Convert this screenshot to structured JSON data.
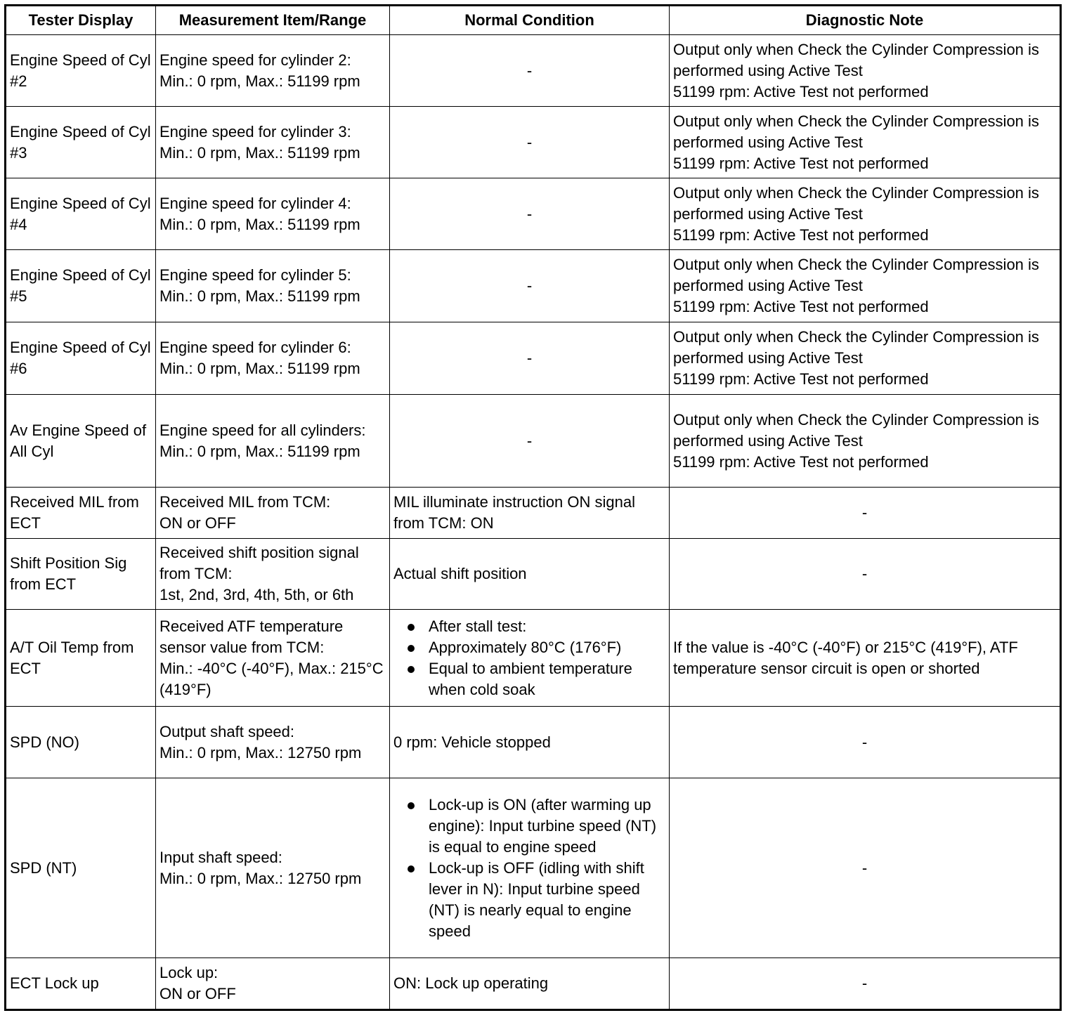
{
  "headers": [
    "Tester Display",
    "Measurement Item/Range",
    "Normal Condition",
    "Diagnostic Note"
  ],
  "rows": [
    {
      "tester": "Engine Speed of Cyl #2",
      "measurement": "Engine speed for cylinder 2:\nMin.: 0 rpm, Max.: 51199 rpm",
      "normal": "-",
      "note": "Output only when Check the Cylinder Compression is performed using Active Test\n51199 rpm: Active Test not performed"
    },
    {
      "tester": "Engine Speed of Cyl #3",
      "measurement": "Engine speed for cylinder 3:\nMin.: 0 rpm, Max.: 51199 rpm",
      "normal": "-",
      "note": "Output only when Check the Cylinder Compression is performed using Active Test\n51199 rpm: Active Test not performed"
    },
    {
      "tester": "Engine Speed of Cyl #4",
      "measurement": "Engine speed for cylinder 4:\nMin.: 0 rpm, Max.: 51199 rpm",
      "normal": "-",
      "note": "Output only when Check the Cylinder Compression is performed using Active Test\n51199 rpm: Active Test not performed"
    },
    {
      "tester": "Engine Speed of Cyl #5",
      "measurement": "Engine speed for cylinder 5:\nMin.: 0 rpm, Max.: 51199 rpm",
      "normal": "-",
      "note": "Output only when Check the Cylinder Compression is performed using Active Test\n51199 rpm: Active Test not performed"
    },
    {
      "tester": "Engine Speed of Cyl #6",
      "measurement": "Engine speed for cylinder 6:\nMin.: 0 rpm, Max.: 51199 rpm",
      "normal": "-",
      "note": "Output only when Check the Cylinder Compression is performed using Active Test\n51199 rpm: Active Test not performed"
    },
    {
      "tester": "Av Engine Speed of All Cyl",
      "measurement": "Engine speed for all cylinders:\nMin.: 0 rpm, Max.: 51199 rpm",
      "normal": "-",
      "note": "Output only when Check the Cylinder Compression is performed using Active Test\n51199 rpm: Active Test not performed"
    },
    {
      "tester": "Received MIL from ECT",
      "measurement": "Received MIL from TCM:\nON or OFF",
      "normal": "MIL illuminate instruction ON signal from TCM: ON",
      "note": "-"
    },
    {
      "tester": "Shift Position Sig from ECT",
      "measurement": "Received shift position signal from TCM:\n1st, 2nd, 3rd, 4th, 5th, or 6th",
      "normal": "Actual shift position",
      "note": "-"
    },
    {
      "tester": "A/T Oil Temp from ECT",
      "measurement": "Received ATF temperature sensor value from TCM:\nMin.: -40°C (-40°F), Max.: 215°C (419°F)",
      "normal": [
        "After stall test:",
        "Approximately 80°C (176°F)",
        "Equal to ambient temperature when cold soak"
      ],
      "note": "If the value is -40°C (-40°F) or 215°C (419°F), ATF temperature sensor circuit is open or shorted"
    },
    {
      "tester": "SPD (NO)",
      "measurement": "Output shaft speed:\nMin.: 0 rpm, Max.: 12750 rpm",
      "normal": "0 rpm: Vehicle stopped",
      "note": "-"
    },
    {
      "tester": "SPD (NT)",
      "measurement": "Input shaft speed:\nMin.: 0 rpm, Max.: 12750 rpm",
      "normal": [
        "Lock-up is ON (after warming up engine): Input turbine speed (NT) is equal to engine speed",
        "Lock-up is OFF (idling with shift lever in N): Input turbine speed (NT) is nearly equal to engine speed"
      ],
      "note": "-"
    },
    {
      "tester": "ECT Lock up",
      "measurement": "Lock up:\nON or OFF",
      "normal": "ON: Lock up operating",
      "note": "-"
    }
  ]
}
